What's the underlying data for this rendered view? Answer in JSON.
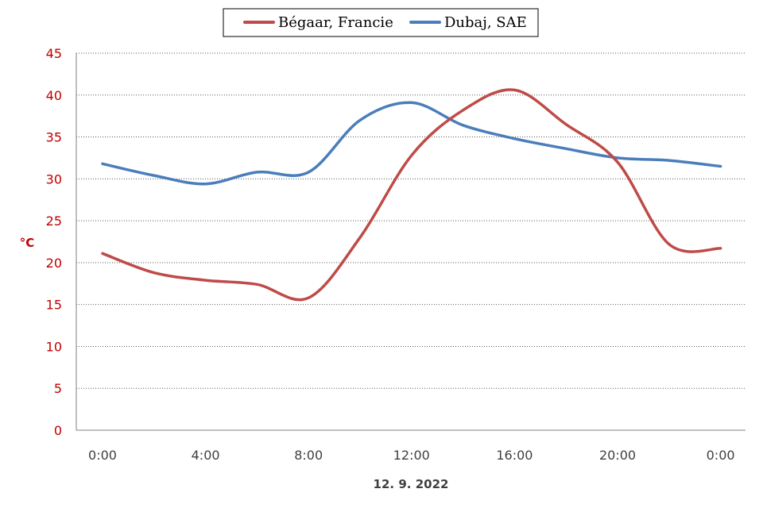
{
  "chart_data": {
    "type": "line",
    "x": [
      "0:00",
      "2:00",
      "4:00",
      "6:00",
      "8:00",
      "10:00",
      "12:00",
      "14:00",
      "16:00",
      "18:00",
      "20:00",
      "22:00",
      "0:00"
    ],
    "x_tick_labels": [
      "0:00",
      "4:00",
      "8:00",
      "12:00",
      "16:00",
      "20:00",
      "0:00"
    ],
    "series": [
      {
        "name": "Bégaar, Francie",
        "color": "#be4b48",
        "values": [
          21.1,
          18.8,
          17.9,
          17.4,
          15.8,
          23.0,
          32.8,
          38.2,
          40.6,
          36.5,
          32.0,
          22.2,
          21.7
        ]
      },
      {
        "name": "Dubaj, SAE",
        "color": "#4a7ebb",
        "values": [
          31.8,
          30.4,
          29.4,
          30.8,
          30.8,
          37.0,
          39.1,
          36.4,
          34.8,
          33.6,
          32.5,
          32.2,
          31.5
        ]
      }
    ],
    "xlabel": "12. 9. 2022",
    "ylabel": "°C",
    "ylim": [
      0,
      45
    ],
    "yticks": [
      0,
      5,
      10,
      15,
      20,
      25,
      30,
      35,
      40,
      45
    ],
    "grid": true,
    "legend_position": "top-center"
  }
}
